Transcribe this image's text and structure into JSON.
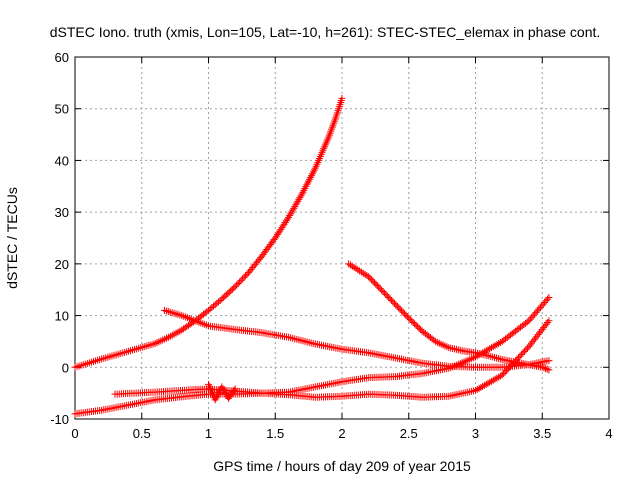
{
  "chart_data": {
    "type": "scatter",
    "title": "dSTEC Iono. truth (xmis, Lon=105, Lat=-10, h=261): STEC-STEC_elemax in phase cont.",
    "xlabel": "GPS time / hours of day 209 of year 2015",
    "ylabel": "dSTEC  / TECUs",
    "xlim": [
      0,
      4
    ],
    "ylim": [
      -10,
      60
    ],
    "xticks": [
      0,
      0.5,
      1,
      1.5,
      2,
      2.5,
      3,
      3.5,
      4
    ],
    "xtick_labels": [
      "0",
      "0.5",
      "1",
      "1.5",
      "2",
      "2.5",
      "3",
      "3.5",
      "4"
    ],
    "yticks": [
      -10,
      0,
      10,
      20,
      30,
      40,
      50,
      60
    ],
    "ytick_labels": [
      "-10",
      "0",
      "10",
      "20",
      "30",
      "40",
      "50",
      "60"
    ],
    "grid": true,
    "marker": "+",
    "color": "#ff0000",
    "series": [
      {
        "x": [
          0,
          0.2,
          0.4,
          0.6,
          0.7,
          0.8,
          0.9,
          1.0,
          1.1,
          1.2,
          1.3,
          1.4,
          1.5,
          1.6,
          1.7,
          1.8,
          1.9,
          1.95,
          2.0
        ],
        "y": [
          0,
          1.6,
          3.1,
          4.6,
          5.8,
          7.2,
          9.0,
          11.0,
          13.2,
          15.6,
          18.3,
          21.5,
          25.0,
          29.0,
          33.5,
          38.5,
          44.5,
          48.0,
          52.0
        ]
      },
      {
        "x": [
          0.67,
          0.8,
          1.0,
          1.2,
          1.4,
          1.6,
          1.8,
          2.0,
          2.2,
          2.4,
          2.6,
          2.8,
          3.0,
          3.2,
          3.4,
          3.55
        ],
        "y": [
          11.0,
          10.0,
          8.0,
          7.3,
          6.7,
          5.8,
          4.5,
          3.5,
          2.8,
          1.8,
          0.8,
          0.2,
          0.0,
          0.0,
          0.5,
          1.3
        ]
      },
      {
        "x": [
          2.05,
          2.2,
          2.35,
          2.5,
          2.6,
          2.7,
          2.8,
          2.9,
          3.0,
          3.1,
          3.2,
          3.3,
          3.4,
          3.5,
          3.55
        ],
        "y": [
          20.0,
          17.5,
          13.5,
          9.5,
          7.0,
          5.0,
          3.8,
          3.2,
          2.8,
          2.2,
          1.5,
          1.0,
          0.5,
          0.0,
          -0.5
        ]
      },
      {
        "x": [
          0.3,
          0.6,
          0.9,
          1.0,
          1.2,
          1.4,
          1.6,
          1.8,
          2.0,
          2.2,
          2.4,
          2.6,
          2.8,
          3.0,
          3.2,
          3.4,
          3.55
        ],
        "y": [
          -5.2,
          -4.8,
          -4.3,
          -4.2,
          -4.6,
          -5.0,
          -4.8,
          -3.8,
          -2.8,
          -2.0,
          -1.8,
          -1.2,
          -0.2,
          2.0,
          5.0,
          9.0,
          13.5
        ]
      },
      {
        "x": [
          0,
          0.2,
          0.4,
          0.6,
          0.8,
          1.0,
          1.2,
          1.4,
          1.6,
          1.8,
          2.0,
          2.2,
          2.4,
          2.6,
          2.8,
          3.0,
          3.2,
          3.4,
          3.55
        ],
        "y": [
          -9.0,
          -8.3,
          -7.3,
          -6.3,
          -5.7,
          -5.2,
          -5.2,
          -5.0,
          -5.3,
          -5.8,
          -5.6,
          -5.2,
          -5.4,
          -5.8,
          -5.6,
          -4.5,
          -1.5,
          4.0,
          9.0
        ]
      },
      {
        "x": [
          1.0,
          1.05,
          1.1,
          1.15,
          1.2
        ],
        "y": [
          -3.3,
          -6.3,
          -3.8,
          -6.0,
          -4.2
        ]
      }
    ]
  }
}
